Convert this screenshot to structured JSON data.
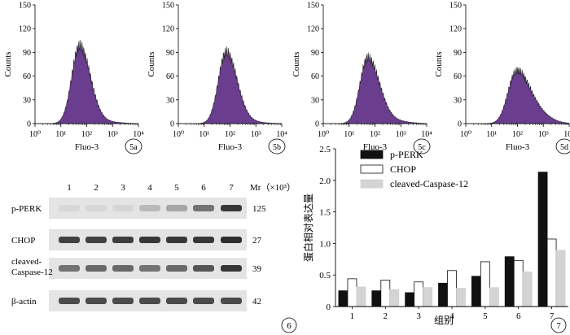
{
  "histograms": {
    "y_ticks": [
      "0",
      "30",
      "60",
      "90",
      "120",
      "150"
    ],
    "x_ticks": [
      "10⁰",
      "10¹",
      "10²",
      "10³",
      "10⁴"
    ],
    "ylabel": "Counts",
    "xlabel": "Fluo-3",
    "panels": [
      {
        "label": "5a",
        "peak_log": 1.72,
        "peak": 98,
        "sigma_left": 0.3,
        "sigma_right": 0.42,
        "tail": 2
      },
      {
        "label": "5b",
        "peak_log": 1.85,
        "peak": 90,
        "sigma_left": 0.3,
        "sigma_right": 0.42,
        "tail": 2
      },
      {
        "label": "5c",
        "peak_log": 1.72,
        "peak": 83,
        "sigma_left": 0.3,
        "sigma_right": 0.45,
        "tail": 3
      },
      {
        "label": "5d",
        "peak_log": 1.95,
        "peak": 65,
        "sigma_left": 0.32,
        "sigma_right": 0.5,
        "tail": 10
      }
    ],
    "fill_color": "#6a3d8f"
  },
  "blot": {
    "label": "6",
    "lanes": [
      "1",
      "2",
      "3",
      "4",
      "5",
      "6",
      "7"
    ],
    "mr_label": "Mr（×10³）",
    "rows": [
      {
        "name": "p-PERK",
        "mr": "125",
        "intensity": [
          0.05,
          0.05,
          0.06,
          0.2,
          0.3,
          0.55,
          0.85
        ]
      },
      {
        "name": "CHOP",
        "mr": "27",
        "intensity": [
          0.8,
          0.8,
          0.82,
          0.85,
          0.85,
          0.85,
          0.9
        ]
      },
      {
        "name": "cleaved-Caspase-12",
        "name_line1": "cleaved-",
        "name_line2": "Caspase-12",
        "mr": "39",
        "intensity": [
          0.55,
          0.6,
          0.6,
          0.55,
          0.6,
          0.7,
          0.85
        ]
      },
      {
        "name": "β-actin",
        "mr": "42",
        "intensity": [
          0.75,
          0.75,
          0.75,
          0.75,
          0.75,
          0.75,
          0.75
        ]
      }
    ]
  },
  "chart_data": {
    "type": "bar",
    "label": "7",
    "categories": [
      "1",
      "2",
      "3",
      "4",
      "5",
      "6",
      "7"
    ],
    "series": [
      {
        "name": "p-PERK",
        "values": [
          0.25,
          0.25,
          0.22,
          0.37,
          0.48,
          0.79,
          2.13
        ],
        "color": "#111111"
      },
      {
        "name": "CHOP",
        "values": [
          0.44,
          0.42,
          0.39,
          0.57,
          0.71,
          0.73,
          1.07
        ],
        "color": "#ffffff"
      },
      {
        "name": "cleaved-Caspase-12",
        "values": [
          0.31,
          0.27,
          0.3,
          0.29,
          0.3,
          0.55,
          0.89
        ],
        "color": "#d4d4d4"
      }
    ],
    "ylim": [
      0,
      2.5
    ],
    "yticks": [
      "0",
      "0.5",
      "1.0",
      "1.5",
      "2.0",
      "2.5"
    ],
    "xlabel": "组别",
    "ylabel": "蛋白相对表达量",
    "legend_position": "top-left"
  }
}
